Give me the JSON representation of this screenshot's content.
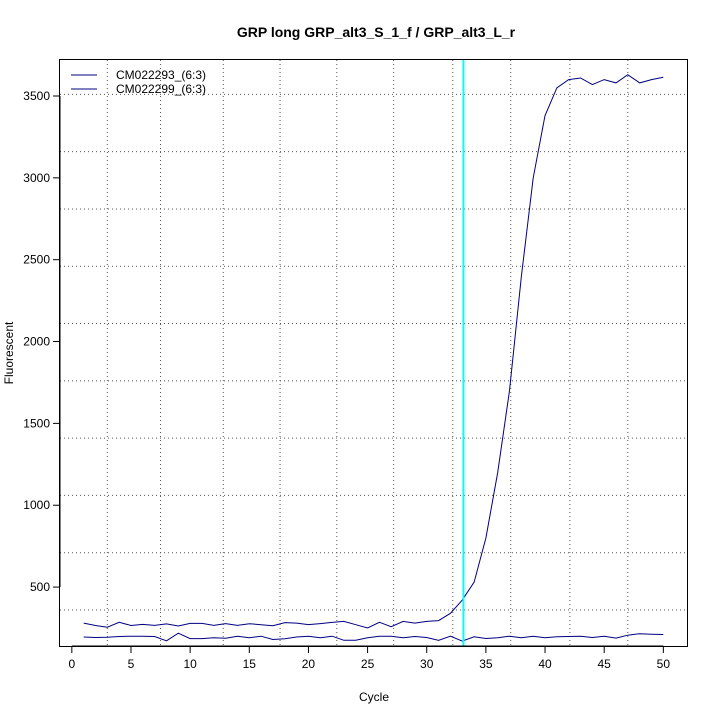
{
  "chart_data": {
    "type": "line",
    "title": "GRP long GRP_alt3_S_1_f / GRP_alt3_L_r",
    "xlabel": "Cycle",
    "ylabel": "Fluorescent",
    "xlim": [
      -1,
      52
    ],
    "ylim": [
      140,
      3720
    ],
    "x_ticks": [
      0,
      5,
      10,
      15,
      20,
      25,
      30,
      35,
      40,
      45,
      50
    ],
    "y_ticks": [
      500,
      1000,
      1500,
      2000,
      2500,
      3000,
      3500
    ],
    "grid": true,
    "grid_x": [
      3,
      7.5,
      12.8,
      17.6,
      22.4,
      27.2,
      32.2,
      37.1,
      42.1,
      47
    ],
    "grid_y": [
      360,
      710,
      1060,
      1410,
      1760,
      2110,
      2460,
      2810,
      3160,
      3510
    ],
    "threshold_x": 33.1,
    "threshold_color": "#00ffff",
    "line_color": "#000080",
    "legend_position": "top-left",
    "series": [
      {
        "name": "CM022293_(6:3)",
        "x": [
          1,
          2,
          3,
          4,
          5,
          6,
          7,
          8,
          9,
          10,
          11,
          12,
          13,
          14,
          15,
          16,
          17,
          18,
          19,
          20,
          21,
          22,
          23,
          24,
          25,
          26,
          27,
          28,
          29,
          30,
          31,
          32,
          33,
          34,
          35,
          36,
          37,
          38,
          39,
          40,
          41,
          42,
          43,
          44,
          45,
          46,
          47,
          48,
          49,
          50
        ],
        "values": [
          280,
          265,
          255,
          285,
          265,
          272,
          266,
          275,
          262,
          278,
          278,
          266,
          277,
          266,
          276,
          270,
          264,
          283,
          280,
          271,
          277,
          284,
          290,
          270,
          250,
          285,
          258,
          290,
          280,
          290,
          295,
          340,
          420,
          530,
          800,
          1200,
          1700,
          2400,
          3000,
          3380,
          3550,
          3600,
          3610,
          3570,
          3600,
          3580,
          3630,
          3580,
          3600,
          3615
        ]
      },
      {
        "name": "CM022299_(6:3)",
        "x": [
          1,
          2,
          3,
          4,
          5,
          6,
          7,
          8,
          9,
          10,
          11,
          12,
          13,
          14,
          15,
          16,
          17,
          18,
          19,
          20,
          21,
          22,
          23,
          24,
          25,
          26,
          27,
          28,
          29,
          30,
          31,
          32,
          33,
          34,
          35,
          36,
          37,
          38,
          39,
          40,
          41,
          42,
          43,
          44,
          45,
          46,
          47,
          48,
          49,
          50
        ],
        "values": [
          195,
          192,
          194,
          198,
          200,
          199,
          198,
          172,
          218,
          185,
          185,
          190,
          187,
          200,
          190,
          200,
          180,
          184,
          195,
          200,
          190,
          200,
          175,
          175,
          190,
          200,
          200,
          190,
          198,
          192,
          175,
          200,
          170,
          196,
          186,
          190,
          200,
          190,
          200,
          190,
          196,
          198,
          200,
          192,
          200,
          188,
          206,
          215,
          212,
          210
        ]
      }
    ]
  }
}
